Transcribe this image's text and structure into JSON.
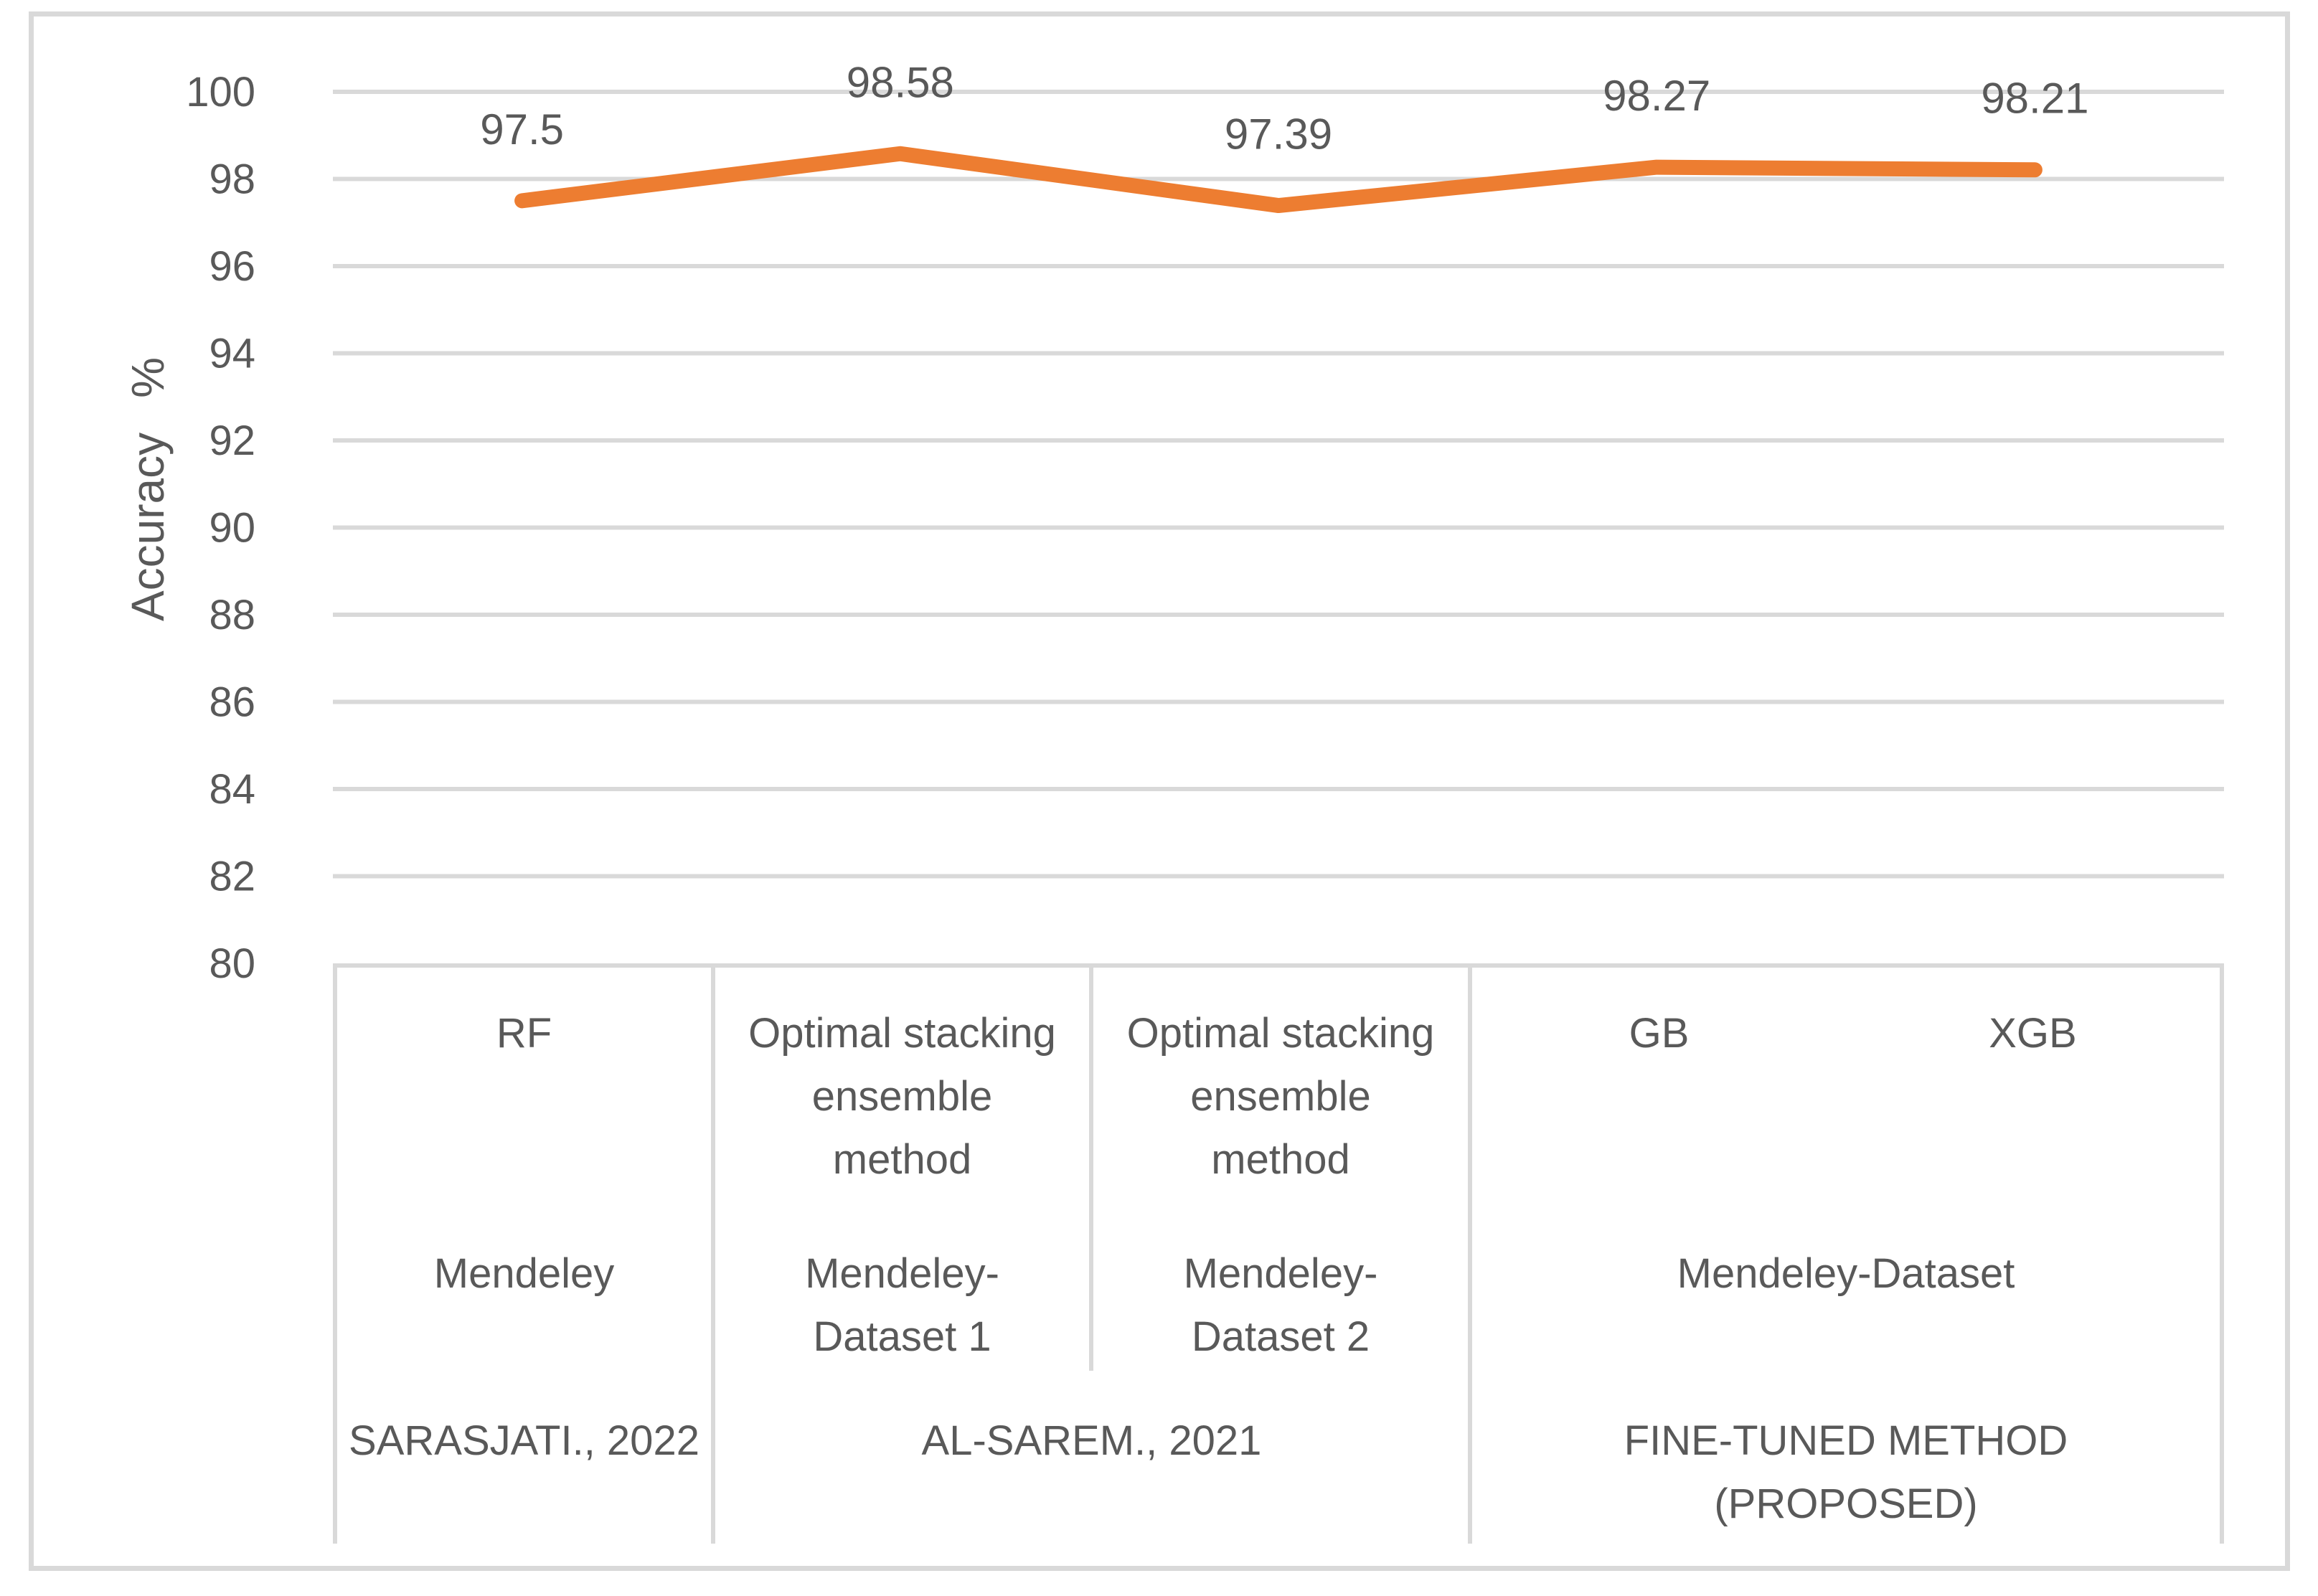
{
  "chart_data": {
    "type": "line",
    "title": "",
    "xlabel": "",
    "ylabel": "Accuracy  %",
    "ylim": [
      80,
      100
    ],
    "ytick_step": 2,
    "grid": true,
    "legend": "none",
    "series": [
      {
        "name": "Accuracy",
        "color": "#ED7D31",
        "values": [
          97.5,
          98.58,
          97.39,
          98.27,
          98.21
        ],
        "point_labels": [
          "97.5",
          "98.58",
          "97.39",
          "98.27",
          "98.21"
        ]
      }
    ],
    "categories": [
      {
        "method": "RF",
        "dataset": "Mendeley",
        "source": "SARASJATI., 2022"
      },
      {
        "method": "Optimal stacking ensemble method",
        "dataset": "Mendeley-Dataset 1",
        "source": "AL-SAREM., 2021"
      },
      {
        "method": "Optimal stacking ensemble method",
        "dataset": "Mendeley-Dataset 2",
        "source": "AL-SAREM., 2021"
      },
      {
        "method": "GB",
        "dataset": "Mendeley-Dataset",
        "source": "FINE-TUNED METHOD (PROPOSED)"
      },
      {
        "method": "XGB",
        "dataset": "Mendeley-Dataset",
        "source": "FINE-TUNED METHOD (PROPOSED)"
      }
    ]
  },
  "axis_table": {
    "methods": {
      "col1": "RF",
      "col2": "Optimal stacking\nensemble\nmethod",
      "col3": "Optimal stacking\nensemble\nmethod",
      "col4a": "GB",
      "col4b": "XGB"
    },
    "datasets": {
      "col1": "Mendeley",
      "col2": "Mendeley-\nDataset 1",
      "col3": "Mendeley-\nDataset 2",
      "col4": "Mendeley-Dataset"
    },
    "sources": {
      "group1": "SARASJATI., 2022",
      "group2": "AL-SAREM., 2021",
      "group3": "FINE-TUNED METHOD\n(PROPOSED)"
    }
  },
  "colors": {
    "line": "#ED7D31",
    "gridline": "#D9D9D9",
    "frame": "#D9D9D9",
    "text": "#595959",
    "data_label_text": "#4D4D4D",
    "background": "#FFFFFF"
  }
}
